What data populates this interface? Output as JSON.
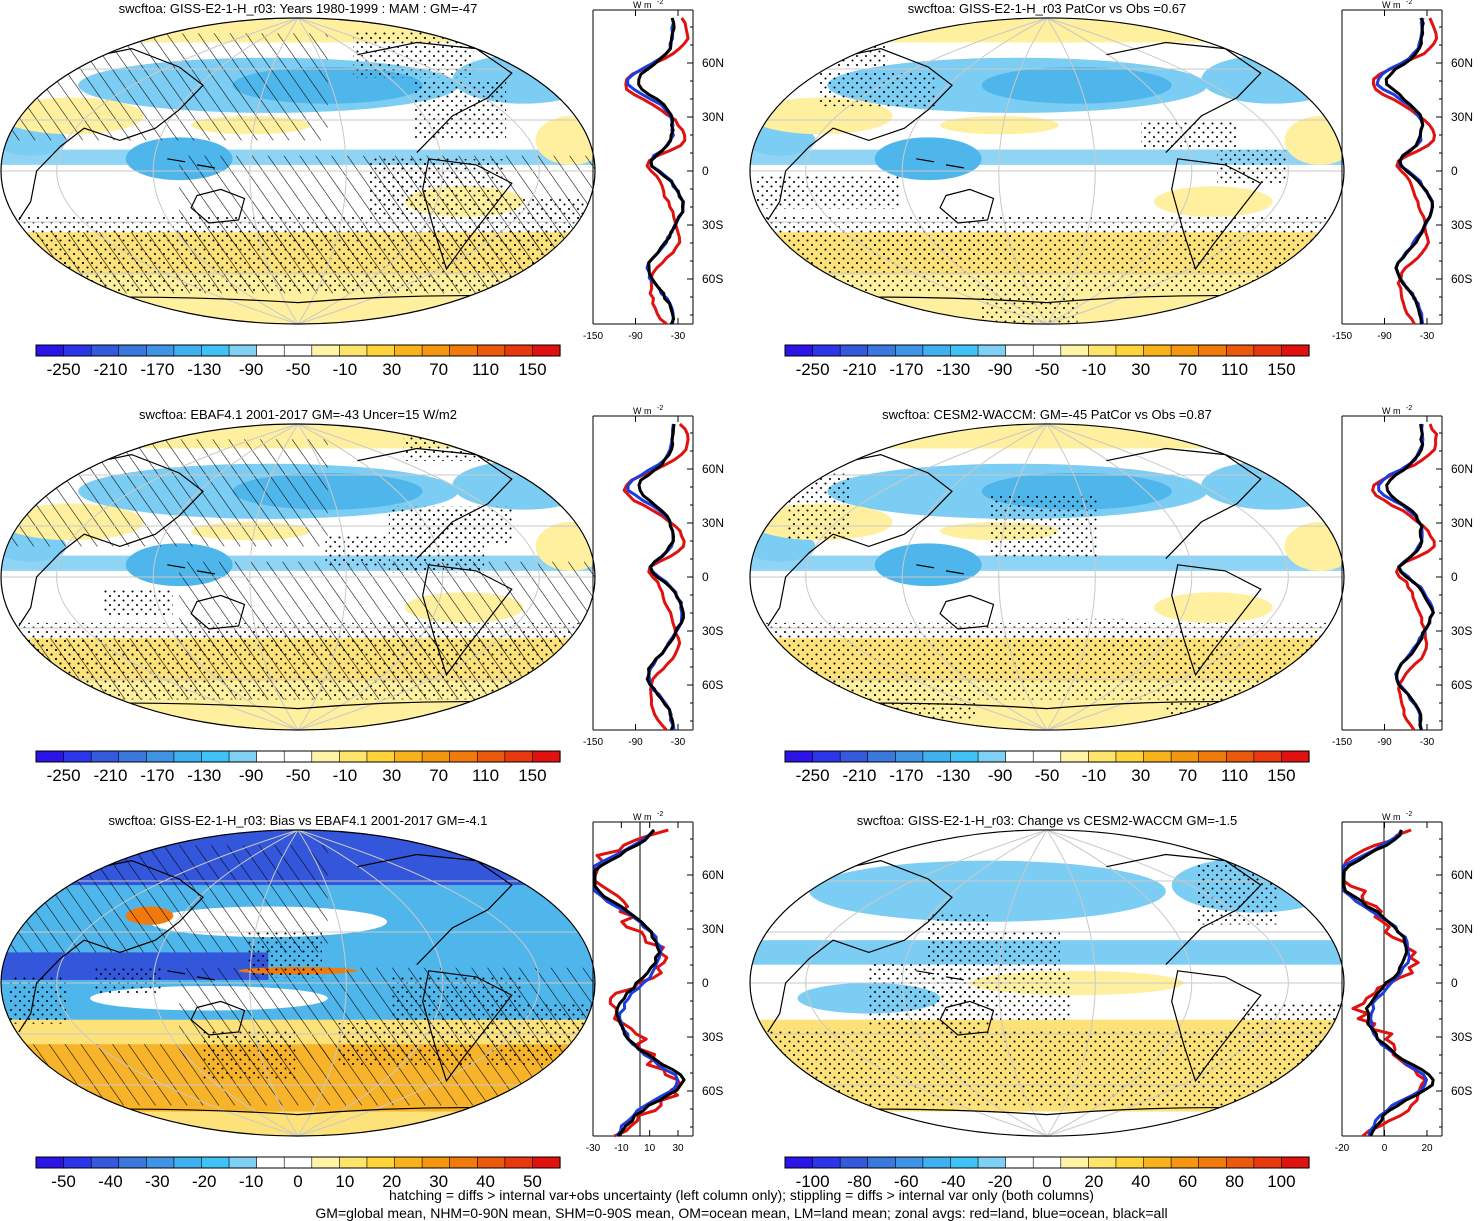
{
  "palettes": {
    "main": [
      "#2a15e6",
      "#2b35ea",
      "#3559dd",
      "#3a78dd",
      "#3f94e6",
      "#3fb0f0",
      "#3fc2f6",
      "#7fd0f2",
      "#ffffff",
      "#ffffff",
      "#fff3a8",
      "#ffe46b",
      "#fed43a",
      "#f8b21c",
      "#f59611",
      "#f07a0c",
      "#eb5a0c",
      "#e8380e",
      "#e0120f"
    ],
    "blues_light": "#7ccdf3",
    "blues_mid": "#4fb6ec",
    "blues_dark": "#3356db",
    "yellow_light": "#fff0a0",
    "yellow_mid": "#fde27a",
    "orange": "#f7b32a"
  },
  "colorbars": {
    "standard": [
      "-250",
      "-210",
      "-170",
      "-130",
      "-90",
      "-50",
      "-10",
      "30",
      "70",
      "110",
      "150"
    ],
    "bias": [
      "-50",
      "-40",
      "-30",
      "-20",
      "-10",
      "0",
      "10",
      "20",
      "30",
      "40",
      "50"
    ],
    "change": [
      "-100",
      "-80",
      "-60",
      "-40",
      "-20",
      "0",
      "20",
      "40",
      "60",
      "80",
      "100"
    ]
  },
  "profile_axes": {
    "lat_labels": [
      "60N",
      "30N",
      "0",
      "30S",
      "60S"
    ],
    "unit": "W m",
    "unit_sup": "-2",
    "std_ticks": [
      "-150",
      "-90",
      "-30"
    ],
    "bias_ticks": [
      "-30",
      "-10",
      "10",
      "30"
    ],
    "change_ticks": [
      "-20",
      "0",
      "20"
    ]
  },
  "panels": [
    {
      "id": "p1",
      "title": "swcftoa: GISS-E2-1-H_r03: Years 1980-1999 : MAM : GM=-47",
      "scheme": "clim",
      "hatch": true,
      "cbar": "standard",
      "prof": "std"
    },
    {
      "id": "p2",
      "title": "swcftoa: GISS-E2-1-H_r03 PatCor vs Obs =0.67",
      "scheme": "clim",
      "hatch": false,
      "cbar": "standard",
      "prof": "std"
    },
    {
      "id": "p3",
      "title": "swcftoa: EBAF4.1 2001-2017 GM=-43 Uncer=15 W/m2",
      "scheme": "clim",
      "hatch": true,
      "cbar": "standard",
      "prof": "std"
    },
    {
      "id": "p4",
      "title": "swcftoa: CESM2-WACCM: GM=-45 PatCor vs Obs =0.87",
      "scheme": "clim",
      "hatch": false,
      "cbar": "standard",
      "prof": "std"
    },
    {
      "id": "p5",
      "title": "swcftoa: GISS-E2-1-H_r03: Bias vs EBAF4.1 2001-2017 GM=-4.1",
      "scheme": "bias",
      "hatch": true,
      "cbar": "bias",
      "prof": "bias"
    },
    {
      "id": "p6",
      "title": "swcftoa: GISS-E2-1-H_r03: Change vs CESM2-WACCM GM=-1.5",
      "scheme": "change",
      "hatch": false,
      "cbar": "change",
      "prof": "change"
    }
  ],
  "chart_data": [
    {
      "type": "heatmap",
      "title": "swcftoa: GISS-E2-1-H_r03: Years 1980-1999 : MAM : GM=-47",
      "colorbar_ticks": [
        -250,
        -210,
        -170,
        -130,
        -90,
        -50,
        -10,
        30,
        70,
        110,
        150
      ],
      "zonal_profile": {
        "type": "line",
        "xlim": [
          -150,
          0
        ],
        "xticks": [
          -150,
          -90,
          -30
        ],
        "y_ticks": [
          "60N",
          "30N",
          "0",
          "30S",
          "60S"
        ],
        "series": [
          {
            "color": "#e0120f"
          },
          {
            "color": "#1a3ce0"
          },
          {
            "color": "#000000"
          }
        ]
      }
    },
    {
      "type": "heatmap",
      "title": "swcftoa: GISS-E2-1-H_r03 PatCor vs Obs =0.67",
      "colorbar_ticks": [
        -250,
        -210,
        -170,
        -130,
        -90,
        -50,
        -10,
        30,
        70,
        110,
        150
      ],
      "zonal_profile": {
        "type": "line",
        "xlim": [
          -150,
          0
        ],
        "xticks": [
          -150,
          -90,
          -30
        ],
        "y_ticks": [
          "60N",
          "30N",
          "0",
          "30S",
          "60S"
        ],
        "series": [
          {
            "color": "#e0120f"
          },
          {
            "color": "#1a3ce0"
          },
          {
            "color": "#000000"
          }
        ]
      }
    },
    {
      "type": "heatmap",
      "title": "swcftoa: EBAF4.1 2001-2017 GM=-43 Uncer=15 W/m2",
      "colorbar_ticks": [
        -250,
        -210,
        -170,
        -130,
        -90,
        -50,
        -10,
        30,
        70,
        110,
        150
      ],
      "zonal_profile": {
        "type": "line",
        "xlim": [
          -150,
          0
        ],
        "xticks": [
          -150,
          -90,
          -30
        ],
        "y_ticks": [
          "60N",
          "30N",
          "0",
          "30S",
          "60S"
        ],
        "series": [
          {
            "color": "#e0120f"
          },
          {
            "color": "#1a3ce0"
          },
          {
            "color": "#000000"
          }
        ]
      }
    },
    {
      "type": "heatmap",
      "title": "swcftoa: CESM2-WACCM: GM=-45 PatCor vs Obs =0.87",
      "colorbar_ticks": [
        -250,
        -210,
        -170,
        -130,
        -90,
        -50,
        -10,
        30,
        70,
        110,
        150
      ],
      "zonal_profile": {
        "type": "line",
        "xlim": [
          -150,
          0
        ],
        "xticks": [
          -150,
          -90,
          -30
        ],
        "y_ticks": [
          "60N",
          "30N",
          "0",
          "30S",
          "60S"
        ],
        "series": [
          {
            "color": "#e0120f"
          },
          {
            "color": "#1a3ce0"
          },
          {
            "color": "#000000"
          }
        ]
      }
    },
    {
      "type": "heatmap",
      "title": "swcftoa: GISS-E2-1-H_r03: Bias vs EBAF4.1 2001-2017 GM=-4.1",
      "colorbar_ticks": [
        -50,
        -40,
        -30,
        -20,
        -10,
        0,
        10,
        20,
        30,
        40,
        50
      ],
      "zonal_profile": {
        "type": "line",
        "xlim": [
          -30,
          30
        ],
        "xticks": [
          -30,
          -10,
          10,
          30
        ],
        "y_ticks": [
          "60N",
          "30N",
          "0",
          "30S",
          "60S"
        ],
        "series": [
          {
            "color": "#e0120f"
          },
          {
            "color": "#1a3ce0"
          },
          {
            "color": "#000000"
          }
        ]
      }
    },
    {
      "type": "heatmap",
      "title": "swcftoa: GISS-E2-1-H_r03: Change vs CESM2-WACCM GM=-1.5",
      "colorbar_ticks": [
        -100,
        -80,
        -60,
        -40,
        -20,
        0,
        20,
        40,
        60,
        80,
        100
      ],
      "zonal_profile": {
        "type": "line",
        "xlim": [
          -30,
          30
        ],
        "xticks": [
          -20,
          0,
          20
        ],
        "y_ticks": [
          "60N",
          "30N",
          "0",
          "30S",
          "60S"
        ],
        "series": [
          {
            "color": "#e0120f"
          },
          {
            "color": "#1a3ce0"
          },
          {
            "color": "#000000"
          }
        ]
      }
    }
  ],
  "footer": {
    "line1": "hatching = diffs > internal var+obs uncertainty (left column only); stippling = diffs > internal var only (both columns)",
    "line2": "GM=global mean, NHM=0-90N mean, SHM=0-90S mean, OM=ocean mean, LM=land mean; zonal avgs: red=land, blue=ocean, black=all"
  }
}
